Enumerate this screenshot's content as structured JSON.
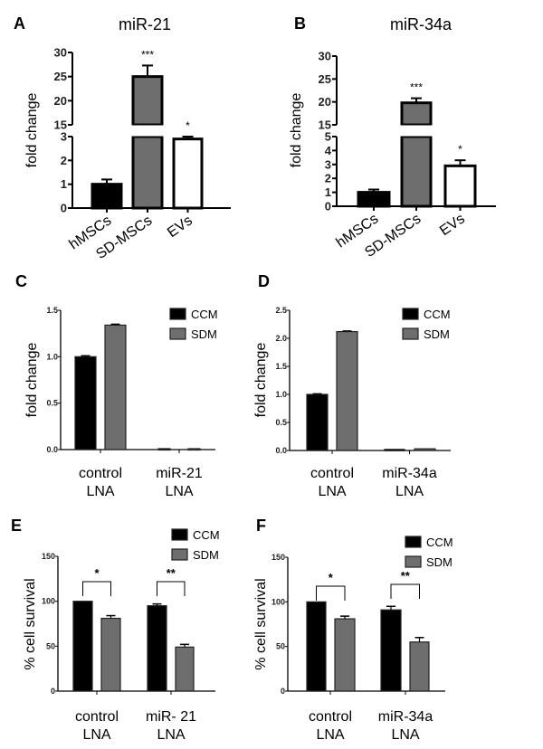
{
  "chart_data": [
    {
      "panel": "A",
      "type": "bar",
      "title": "miR-21",
      "ylabel": "fold change",
      "xlabel": "",
      "y_axis_break": {
        "lower": [
          0,
          3
        ],
        "upper": [
          15,
          30
        ]
      },
      "yticks": [
        "0",
        "1",
        "2",
        "3",
        "15",
        "20",
        "25",
        "30"
      ],
      "categories": [
        "hMSCs",
        "SD-MSCs",
        "EVs"
      ],
      "values": [
        1.0,
        25.0,
        2.9
      ],
      "errors": [
        0.2,
        2.3,
        0.1
      ],
      "significance": [
        "",
        "***",
        "*"
      ],
      "colors": [
        "#000000",
        "#6e6e6e",
        "#ffffff"
      ]
    },
    {
      "panel": "B",
      "type": "bar",
      "title": "miR-34a",
      "ylabel": "fold change",
      "xlabel": "",
      "y_axis_break": {
        "lower": [
          0,
          5
        ],
        "upper": [
          15,
          30
        ]
      },
      "yticks": [
        "0",
        "1",
        "2",
        "3",
        "4",
        "5",
        "15",
        "20",
        "25",
        "30"
      ],
      "categories": [
        "hMSCs",
        "SD-MSCs",
        "EVs"
      ],
      "values": [
        1.0,
        19.8,
        2.9
      ],
      "errors": [
        0.2,
        1.0,
        0.4
      ],
      "significance": [
        "",
        "***",
        "*"
      ],
      "colors": [
        "#000000",
        "#6e6e6e",
        "#ffffff"
      ]
    },
    {
      "panel": "C",
      "type": "bar",
      "title": "",
      "ylabel": "fold change",
      "xlabel": "",
      "ylim": [
        0,
        1.5
      ],
      "yticks": [
        "0.0",
        "0.5",
        "1.0",
        "1.5"
      ],
      "categories": [
        [
          "control",
          "LNA"
        ],
        [
          "miR-21",
          "LNA"
        ]
      ],
      "series": [
        {
          "name": "CCM",
          "color": "#000000",
          "values": [
            1.0,
            0.01
          ],
          "errors": [
            0.01,
            0.0
          ]
        },
        {
          "name": "SDM",
          "color": "#6e6e6e",
          "values": [
            1.34,
            0.01
          ],
          "errors": [
            0.01,
            0.0
          ]
        }
      ],
      "legend": "top-right"
    },
    {
      "panel": "D",
      "type": "bar",
      "title": "",
      "ylabel": "fold change",
      "xlabel": "",
      "ylim": [
        0,
        2.5
      ],
      "yticks": [
        "0.0",
        "0.5",
        "1.0",
        "1.5",
        "2.0",
        "2.5"
      ],
      "categories": [
        [
          "control",
          "LNA"
        ],
        [
          "miR-34a",
          "LNA"
        ]
      ],
      "series": [
        {
          "name": "CCM",
          "color": "#000000",
          "values": [
            1.0,
            0.02
          ],
          "errors": [
            0.01,
            0.0
          ]
        },
        {
          "name": "SDM",
          "color": "#6e6e6e",
          "values": [
            2.12,
            0.03
          ],
          "errors": [
            0.01,
            0.0
          ]
        }
      ],
      "legend": "top-right"
    },
    {
      "panel": "E",
      "type": "bar",
      "title": "",
      "ylabel": "% cell survival",
      "xlabel": "",
      "ylim": [
        0,
        150
      ],
      "yticks": [
        "0",
        "50",
        "100",
        "150"
      ],
      "categories": [
        [
          "control",
          "LNA"
        ],
        [
          "miR- 21",
          "LNA"
        ]
      ],
      "series": [
        {
          "name": "CCM",
          "color": "#000000",
          "values": [
            100,
            95
          ],
          "errors": [
            0,
            2
          ]
        },
        {
          "name": "SDM",
          "color": "#6e6e6e",
          "values": [
            81,
            49
          ],
          "errors": [
            3,
            3
          ]
        }
      ],
      "significance": [
        "*",
        "**"
      ],
      "legend": "top-right"
    },
    {
      "panel": "F",
      "type": "bar",
      "title": "",
      "ylabel": "% cell survival",
      "xlabel": "",
      "ylim": [
        0,
        150
      ],
      "yticks": [
        "0",
        "50",
        "100",
        "150"
      ],
      "categories": [
        [
          "control",
          "LNA"
        ],
        [
          "miR-34a",
          "LNA"
        ]
      ],
      "series": [
        {
          "name": "CCM",
          "color": "#000000",
          "values": [
            100,
            91
          ],
          "errors": [
            0,
            4
          ]
        },
        {
          "name": "SDM",
          "color": "#6e6e6e",
          "values": [
            81,
            55
          ],
          "errors": [
            3,
            5
          ]
        }
      ],
      "significance": [
        "*",
        "**"
      ],
      "legend": "top-right"
    }
  ]
}
